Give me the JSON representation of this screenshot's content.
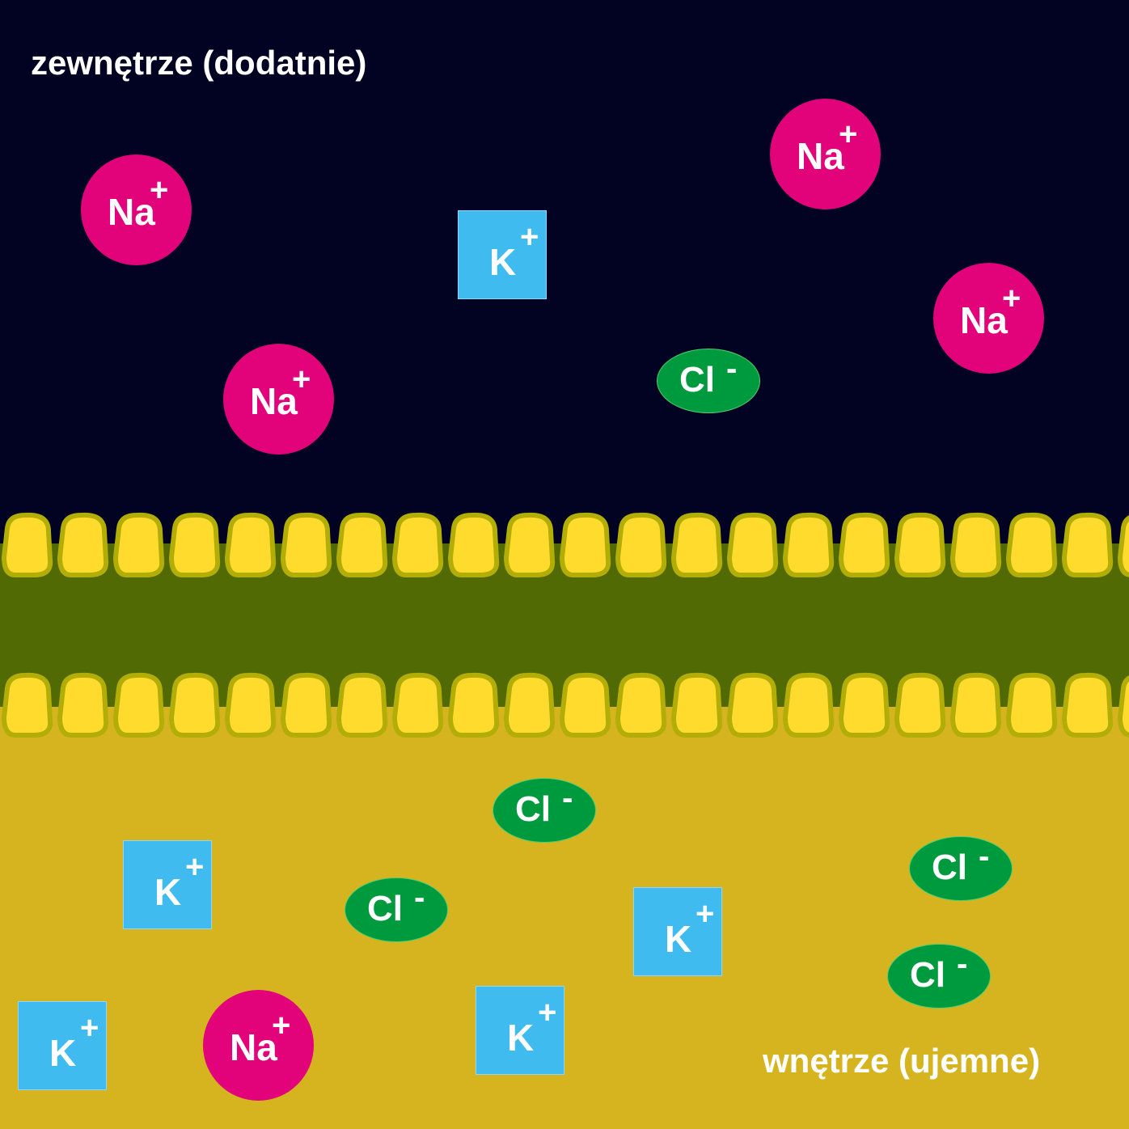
{
  "labels": {
    "outside": "zewnętrze (dodatnie)",
    "inside": "wnętrze (ujemne)"
  },
  "ion_types": {
    "na": {
      "symbol": "Na",
      "charge": "+",
      "shape": "circle",
      "color": "#e2037a"
    },
    "k": {
      "symbol": "K",
      "charge": "+",
      "shape": "square",
      "color": "#3fbbef"
    },
    "cl": {
      "symbol": "Cl",
      "charge": "-",
      "shape": "ellipse",
      "color": "#009a3e"
    }
  },
  "regions": {
    "outside": {
      "color": "#020222",
      "ions": [
        "na",
        "na",
        "na",
        "na",
        "k",
        "cl"
      ]
    },
    "membrane": {
      "head_color": "#ffdb2e",
      "head_outline": "#b3ad08",
      "core_color": "#526a04"
    },
    "inside": {
      "color": "#d5b420",
      "ions": [
        "k",
        "k",
        "k",
        "k",
        "na",
        "cl",
        "cl",
        "cl",
        "cl"
      ]
    }
  }
}
